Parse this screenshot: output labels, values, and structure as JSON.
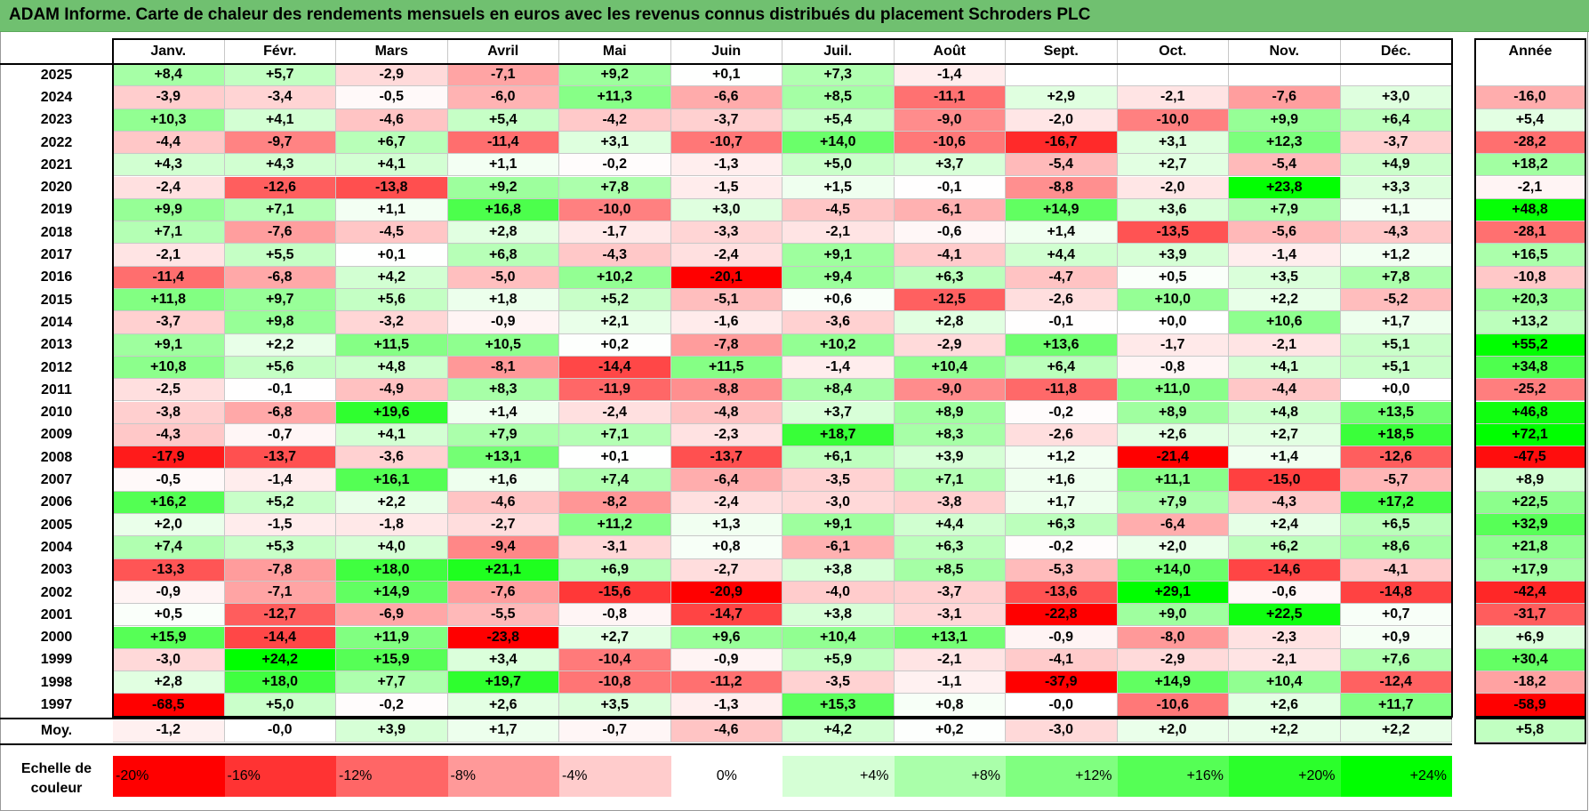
{
  "title": "ADAM Informe. Carte de chaleur des rendements mensuels en euros avec les revenus connus distribués du placement Schroders PLC",
  "colors": {
    "title_bar": "#70c070",
    "negative_max": "#ff0000",
    "neutral": "#ffffff",
    "positive_max": "#00ff00"
  },
  "chart_data": {
    "type": "heatmap",
    "title": "ADAM Informe. Carte de chaleur des rendements mensuels en euros avec les revenus connus distribués du placement Schroders PLC",
    "months": [
      "Janv.",
      "Févr.",
      "Mars",
      "Avril",
      "Mai",
      "Juin",
      "Juil.",
      "Août",
      "Sept.",
      "Oct.",
      "Nov.",
      "Déc."
    ],
    "year_header": "Année",
    "rows": [
      {
        "year": "2025",
        "months": [
          "+8,4",
          "+5,7",
          "-2,9",
          "-7,1",
          "+9,2",
          "+0,1",
          "+7,3",
          "-1,4",
          "",
          "",
          "",
          ""
        ],
        "annual": ""
      },
      {
        "year": "2024",
        "months": [
          "-3,9",
          "-3,4",
          "-0,5",
          "-6,0",
          "+11,3",
          "-6,6",
          "+8,5",
          "-11,1",
          "+2,9",
          "-2,1",
          "-7,6",
          "+3,0"
        ],
        "annual": "-16,0"
      },
      {
        "year": "2023",
        "months": [
          "+10,3",
          "+4,1",
          "-4,6",
          "+5,4",
          "-4,2",
          "-3,7",
          "+5,4",
          "-9,0",
          "-2,0",
          "-10,0",
          "+9,9",
          "+6,4"
        ],
        "annual": "+5,4"
      },
      {
        "year": "2022",
        "months": [
          "-4,4",
          "-9,7",
          "+6,7",
          "-11,4",
          "+3,1",
          "-10,7",
          "+14,0",
          "-10,6",
          "-16,7",
          "+3,1",
          "+12,3",
          "-3,7"
        ],
        "annual": "-28,2"
      },
      {
        "year": "2021",
        "months": [
          "+4,3",
          "+4,3",
          "+4,1",
          "+1,1",
          "-0,2",
          "-1,3",
          "+5,0",
          "+3,7",
          "-5,4",
          "+2,7",
          "-5,4",
          "+4,9"
        ],
        "annual": "+18,2"
      },
      {
        "year": "2020",
        "months": [
          "-2,4",
          "-12,6",
          "-13,8",
          "+9,2",
          "+7,8",
          "-1,5",
          "+1,5",
          "-0,1",
          "-8,8",
          "-2,0",
          "+23,8",
          "+3,3"
        ],
        "annual": "-2,1"
      },
      {
        "year": "2019",
        "months": [
          "+9,9",
          "+7,1",
          "+1,1",
          "+16,8",
          "-10,0",
          "+3,0",
          "-4,5",
          "-6,1",
          "+14,9",
          "+3,6",
          "+7,9",
          "+1,1"
        ],
        "annual": "+48,8"
      },
      {
        "year": "2018",
        "months": [
          "+7,1",
          "-7,6",
          "-4,5",
          "+2,8",
          "-1,7",
          "-3,3",
          "-2,1",
          "-0,6",
          "+1,4",
          "-13,5",
          "-5,6",
          "-4,3"
        ],
        "annual": "-28,1"
      },
      {
        "year": "2017",
        "months": [
          "-2,1",
          "+5,5",
          "+0,1",
          "+6,8",
          "-4,3",
          "-2,4",
          "+9,1",
          "-4,1",
          "+4,4",
          "+3,9",
          "-1,4",
          "+1,2"
        ],
        "annual": "+16,5"
      },
      {
        "year": "2016",
        "months": [
          "-11,4",
          "-6,8",
          "+4,2",
          "-5,0",
          "+10,2",
          "-20,1",
          "+9,4",
          "+6,3",
          "-4,7",
          "+0,5",
          "+3,5",
          "+7,8"
        ],
        "annual": "-10,8"
      },
      {
        "year": "2015",
        "months": [
          "+11,8",
          "+9,7",
          "+5,6",
          "+1,8",
          "+5,2",
          "-5,1",
          "+0,6",
          "-12,5",
          "-2,6",
          "+10,0",
          "+2,2",
          "-5,2"
        ],
        "annual": "+20,3"
      },
      {
        "year": "2014",
        "months": [
          "-3,7",
          "+9,8",
          "-3,2",
          "-0,9",
          "+2,1",
          "-1,6",
          "-3,6",
          "+2,8",
          "-0,1",
          "+0,0",
          "+10,6",
          "+1,7"
        ],
        "annual": "+13,2"
      },
      {
        "year": "2013",
        "months": [
          "+9,1",
          "+2,2",
          "+11,5",
          "+10,5",
          "+0,2",
          "-7,8",
          "+10,2",
          "-2,9",
          "+13,6",
          "-1,7",
          "-2,1",
          "+5,1"
        ],
        "annual": "+55,2"
      },
      {
        "year": "2012",
        "months": [
          "+10,8",
          "+5,6",
          "+4,8",
          "-8,1",
          "-14,4",
          "+11,5",
          "-1,4",
          "+10,4",
          "+6,4",
          "-0,8",
          "+4,1",
          "+5,1"
        ],
        "annual": "+34,8"
      },
      {
        "year": "2011",
        "months": [
          "-2,5",
          "-0,1",
          "-4,9",
          "+8,3",
          "-11,9",
          "-8,8",
          "+8,4",
          "-9,0",
          "-11,8",
          "+11,0",
          "-4,4",
          "+0,0"
        ],
        "annual": "-25,2"
      },
      {
        "year": "2010",
        "months": [
          "-3,8",
          "-6,8",
          "+19,6",
          "+1,4",
          "-2,4",
          "-4,8",
          "+3,7",
          "+8,9",
          "-0,2",
          "+8,9",
          "+4,8",
          "+13,5"
        ],
        "annual": "+46,8"
      },
      {
        "year": "2009",
        "months": [
          "-4,3",
          "-0,7",
          "+4,1",
          "+7,9",
          "+7,1",
          "-2,3",
          "+18,7",
          "+8,3",
          "-2,6",
          "+2,6",
          "+2,7",
          "+18,5"
        ],
        "annual": "+72,1"
      },
      {
        "year": "2008",
        "months": [
          "-17,9",
          "-13,7",
          "-3,6",
          "+13,1",
          "+0,1",
          "-13,7",
          "+6,1",
          "+3,9",
          "+1,2",
          "-21,4",
          "+1,4",
          "-12,6"
        ],
        "annual": "-47,5"
      },
      {
        "year": "2007",
        "months": [
          "-0,5",
          "-1,4",
          "+16,1",
          "+1,6",
          "+7,4",
          "-6,4",
          "-3,5",
          "+7,1",
          "+1,6",
          "+11,1",
          "-15,0",
          "-5,7"
        ],
        "annual": "+8,9"
      },
      {
        "year": "2006",
        "months": [
          "+16,2",
          "+5,2",
          "+2,2",
          "-4,6",
          "-8,2",
          "-2,4",
          "-3,0",
          "-3,8",
          "+1,7",
          "+7,9",
          "-4,3",
          "+17,2"
        ],
        "annual": "+22,5"
      },
      {
        "year": "2005",
        "months": [
          "+2,0",
          "-1,5",
          "-1,8",
          "-2,7",
          "+11,2",
          "+1,3",
          "+9,1",
          "+4,4",
          "+6,3",
          "-6,4",
          "+2,4",
          "+6,5"
        ],
        "annual": "+32,9"
      },
      {
        "year": "2004",
        "months": [
          "+7,4",
          "+5,3",
          "+4,0",
          "-9,4",
          "-3,1",
          "+0,8",
          "-6,1",
          "+6,3",
          "-0,2",
          "+2,0",
          "+6,2",
          "+8,6"
        ],
        "annual": "+21,8"
      },
      {
        "year": "2003",
        "months": [
          "-13,3",
          "-7,8",
          "+18,0",
          "+21,1",
          "+6,9",
          "-2,7",
          "+3,8",
          "+8,5",
          "-5,3",
          "+14,0",
          "-14,6",
          "-4,1"
        ],
        "annual": "+17,9"
      },
      {
        "year": "2002",
        "months": [
          "-0,9",
          "-7,1",
          "+14,9",
          "-7,6",
          "-15,6",
          "-20,9",
          "-4,0",
          "-3,7",
          "-13,6",
          "+29,1",
          "-0,6",
          "-14,8"
        ],
        "annual": "-42,4"
      },
      {
        "year": "2001",
        "months": [
          "+0,5",
          "-12,7",
          "-6,9",
          "-5,5",
          "-0,8",
          "-14,7",
          "+3,8",
          "-3,1",
          "-22,8",
          "+9,0",
          "+22,5",
          "+0,7"
        ],
        "annual": "-31,7"
      },
      {
        "year": "2000",
        "months": [
          "+15,9",
          "-14,4",
          "+11,9",
          "-23,8",
          "+2,7",
          "+9,6",
          "+10,4",
          "+13,1",
          "-0,9",
          "-8,0",
          "-2,3",
          "+0,9"
        ],
        "annual": "+6,9"
      },
      {
        "year": "1999",
        "months": [
          "-3,0",
          "+24,2",
          "+15,9",
          "+3,4",
          "-10,4",
          "-0,9",
          "+5,9",
          "-2,1",
          "-4,1",
          "-2,9",
          "-2,1",
          "+7,6"
        ],
        "annual": "+30,4"
      },
      {
        "year": "1998",
        "months": [
          "+2,8",
          "+18,0",
          "+7,7",
          "+19,7",
          "-10,8",
          "-11,2",
          "-3,5",
          "-1,1",
          "-37,9",
          "+14,9",
          "+10,4",
          "-12,4"
        ],
        "annual": "-18,2"
      },
      {
        "year": "1997",
        "months": [
          "-68,5",
          "+5,0",
          "-0,2",
          "+2,6",
          "+3,5",
          "-1,3",
          "+15,3",
          "+0,8",
          "-0,0",
          "-10,6",
          "+2,6",
          "+11,7"
        ],
        "annual": "-58,9"
      }
    ],
    "average": {
      "label": "Moy.",
      "months": [
        "-1,2",
        "-0,0",
        "+3,9",
        "+1,7",
        "-0,7",
        "-4,6",
        "+4,2",
        "+0,2",
        "-3,0",
        "+2,0",
        "+2,2",
        "+2,2"
      ],
      "annual": "+5,8"
    },
    "color_scale": {
      "label": "Echelle de couleur",
      "steps": [
        "-20%",
        "-16%",
        "-12%",
        "-8%",
        "-4%",
        "0%",
        "+4%",
        "+8%",
        "+12%",
        "+16%",
        "+20%",
        "+24%"
      ]
    },
    "monthly_color_range": [
      -20,
      24
    ],
    "annual_color_range": [
      -50,
      50
    ]
  }
}
